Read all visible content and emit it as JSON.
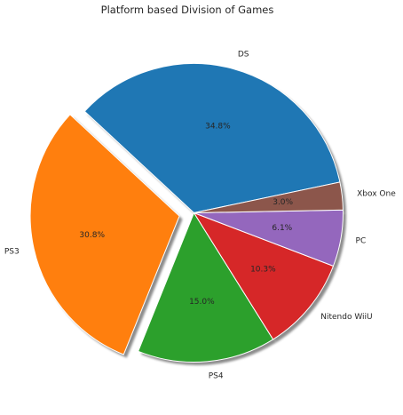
{
  "chart_data": {
    "type": "pie",
    "title": "Platform based Division of Games",
    "categories": [
      "DS",
      "PS3",
      "PS4",
      "Nitendo WiiU",
      "PC",
      "Xbox One"
    ],
    "values": [
      34.8,
      30.8,
      15.0,
      10.3,
      6.1,
      3.0
    ],
    "value_labels": [
      "34.8%",
      "30.8%",
      "15.0%",
      "10.3%",
      "6.1%",
      "3.0%"
    ],
    "colors": [
      "#1f77b4",
      "#ff7f0e",
      "#2ca02c",
      "#d62728",
      "#9467bd",
      "#8c564b"
    ],
    "exploded": [
      "PS3"
    ],
    "shadow": true,
    "start_angle_degrees": 11.88,
    "direction": "counterclockwise"
  }
}
